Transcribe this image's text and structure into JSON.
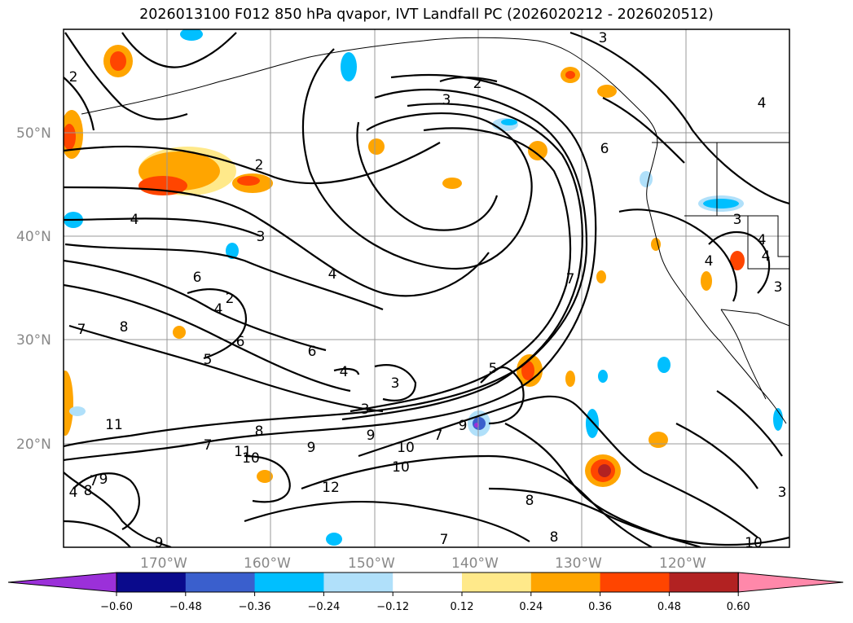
{
  "title": "2026013100 F012 850 hPa qvapor, IVT Landfall PC (2026020212 - 2026020512)",
  "map": {
    "lat_labels": [
      "50°N",
      "40°N",
      "30°N",
      "20°N"
    ],
    "lon_labels": [
      "170°W",
      "160°W",
      "150°W",
      "140°W",
      "130°W",
      "120°W"
    ],
    "contour_labels": [
      "2",
      "3",
      "2",
      "3",
      "4",
      "6",
      "2",
      "3",
      "4",
      "6",
      "4",
      "7",
      "8",
      "6",
      "4",
      "2",
      "5",
      "6",
      "4",
      "3",
      "3",
      "7",
      "9",
      "10",
      "9",
      "8",
      "7",
      "8",
      "10",
      "11",
      "12",
      "11",
      "7",
      "8",
      "10",
      "9",
      "9",
      "8",
      "7",
      "4",
      "5",
      "7",
      "4",
      "3",
      "4",
      "4",
      "3",
      "3",
      "10",
      "9"
    ]
  },
  "colorbar": {
    "ticks": [
      "−0.60",
      "−0.48",
      "−0.36",
      "−0.24",
      "−0.12",
      "0.12",
      "0.24",
      "0.36",
      "0.48",
      "0.60"
    ],
    "colors": [
      "#9b30d9",
      "#0a0a8c",
      "#3a5fcd",
      "#00bfff",
      "#b0e0fa",
      "#ffffff",
      "#ffe98a",
      "#ffa500",
      "#ff4500",
      "#b22222",
      "#ff88aa"
    ]
  }
}
